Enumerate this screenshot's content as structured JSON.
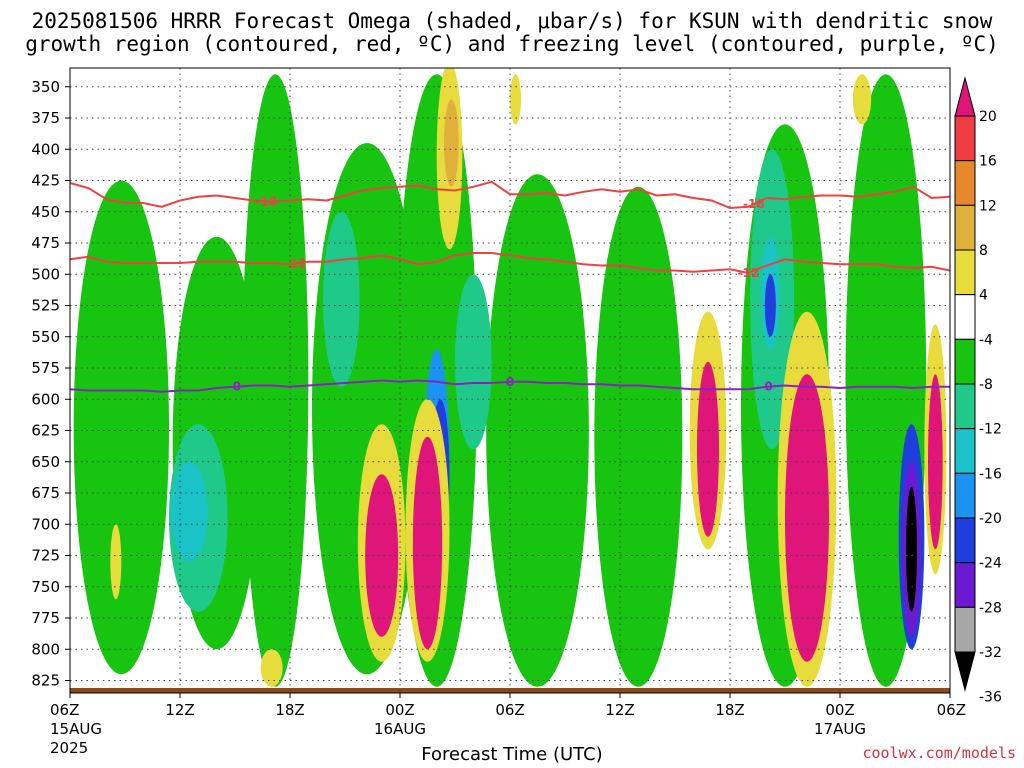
{
  "chart_data": {
    "type": "heatmap",
    "title_line1": "2025081506 HRRR Forecast Omega (shaded, μbar/s) for KSUN with dendritic snow",
    "title_line2": "growth region (contoured, red, ºC) and freezing level (contoured, purple, ºC)",
    "xlabel": "Forecast Time (UTC)",
    "credit": "coolwx.com/models",
    "y_axis": {
      "ticks": [
        350,
        375,
        400,
        425,
        450,
        475,
        500,
        525,
        550,
        575,
        600,
        625,
        650,
        675,
        700,
        725,
        750,
        775,
        800,
        825
      ],
      "range": [
        835,
        335
      ],
      "grid": true
    },
    "x_axis": {
      "ticks": [
        {
          "hour": 0,
          "label": "06Z",
          "sub": "15AUG",
          "sub2": "2025"
        },
        {
          "hour": 6,
          "label": "12Z",
          "sub": "",
          "sub2": ""
        },
        {
          "hour": 12,
          "label": "18Z",
          "sub": "",
          "sub2": ""
        },
        {
          "hour": 18,
          "label": "00Z",
          "sub": "16AUG",
          "sub2": ""
        },
        {
          "hour": 24,
          "label": "06Z",
          "sub": "",
          "sub2": ""
        },
        {
          "hour": 30,
          "label": "12Z",
          "sub": "",
          "sub2": ""
        },
        {
          "hour": 36,
          "label": "18Z",
          "sub": "",
          "sub2": ""
        },
        {
          "hour": 42,
          "label": "00Z",
          "sub": "17AUG",
          "sub2": ""
        },
        {
          "hour": 48,
          "label": "06Z",
          "sub": "",
          "sub2": ""
        }
      ],
      "range": [
        0,
        48
      ],
      "grid": true
    },
    "colorbar": {
      "labels": [
        20,
        16,
        12,
        8,
        4,
        -4,
        -8,
        -12,
        -16,
        -20,
        -24,
        -28,
        -32,
        -36
      ],
      "colors": [
        "#e0157a",
        "#ef3b43",
        "#e6892a",
        "#dfb03c",
        "#e8dc3c",
        "#ffffff",
        "#17c40f",
        "#1fc98a",
        "#19c3c7",
        "#1a94f0",
        "#1e3fdd",
        "#6a1ad1",
        "#a7a7a7",
        "#000000"
      ]
    },
    "contours": [
      {
        "name": "-18",
        "color": "#ef4141",
        "label_hours": [
          10.7,
          37.3
        ],
        "points": [
          [
            0,
            427
          ],
          [
            1,
            431
          ],
          [
            2,
            440
          ],
          [
            3,
            443
          ],
          [
            4,
            443
          ],
          [
            5,
            446
          ],
          [
            6,
            441
          ],
          [
            7,
            438
          ],
          [
            8,
            437
          ],
          [
            9,
            439
          ],
          [
            10,
            441
          ],
          [
            11,
            442
          ],
          [
            12,
            441
          ],
          [
            13,
            440
          ],
          [
            14,
            441
          ],
          [
            15,
            437
          ],
          [
            16,
            433
          ],
          [
            17,
            431
          ],
          [
            18,
            430
          ],
          [
            19,
            429
          ],
          [
            20,
            432
          ],
          [
            21,
            433
          ],
          [
            22,
            430
          ],
          [
            23,
            426
          ],
          [
            24,
            436
          ],
          [
            25,
            436
          ],
          [
            26,
            435
          ],
          [
            27,
            437
          ],
          [
            28,
            434
          ],
          [
            29,
            432
          ],
          [
            30,
            434
          ],
          [
            31,
            432
          ],
          [
            32,
            437
          ],
          [
            33,
            436
          ],
          [
            34,
            439
          ],
          [
            35,
            441
          ],
          [
            36,
            447
          ],
          [
            37,
            446
          ],
          [
            38,
            439
          ],
          [
            39,
            440
          ],
          [
            40,
            438
          ],
          [
            41,
            437
          ],
          [
            42,
            437
          ],
          [
            43,
            438
          ],
          [
            44,
            436
          ],
          [
            45,
            434
          ],
          [
            46,
            430
          ],
          [
            47,
            439
          ],
          [
            48,
            438
          ]
        ]
      },
      {
        "name": "-12",
        "color": "#ef4141",
        "label_hours": [
          12.3,
          37.0
        ],
        "points": [
          [
            0,
            488
          ],
          [
            1,
            486
          ],
          [
            2,
            490
          ],
          [
            3,
            491
          ],
          [
            4,
            491
          ],
          [
            5,
            491
          ],
          [
            6,
            491
          ],
          [
            7,
            490
          ],
          [
            8,
            490
          ],
          [
            9,
            490
          ],
          [
            10,
            491
          ],
          [
            11,
            491
          ],
          [
            12,
            492
          ],
          [
            13,
            490
          ],
          [
            14,
            490
          ],
          [
            15,
            488
          ],
          [
            16,
            487
          ],
          [
            17,
            485
          ],
          [
            18,
            488
          ],
          [
            19,
            492
          ],
          [
            20,
            490
          ],
          [
            21,
            485
          ],
          [
            22,
            483
          ],
          [
            23,
            483
          ],
          [
            24,
            485
          ],
          [
            25,
            487
          ],
          [
            26,
            488
          ],
          [
            27,
            490
          ],
          [
            28,
            492
          ],
          [
            29,
            493
          ],
          [
            30,
            493
          ],
          [
            31,
            495
          ],
          [
            32,
            497
          ],
          [
            33,
            497
          ],
          [
            34,
            498
          ],
          [
            35,
            497
          ],
          [
            36,
            496
          ],
          [
            37,
            499
          ],
          [
            38,
            493
          ],
          [
            39,
            488
          ],
          [
            40,
            490
          ],
          [
            41,
            491
          ],
          [
            42,
            492
          ],
          [
            43,
            492
          ],
          [
            44,
            492
          ],
          [
            45,
            494
          ],
          [
            46,
            495
          ],
          [
            47,
            494
          ],
          [
            48,
            497
          ]
        ]
      },
      {
        "name": "0",
        "color": "#8a22c0",
        "label_hours": [
          9.1,
          24.0,
          38.1
        ],
        "points": [
          [
            0,
            592
          ],
          [
            1,
            593
          ],
          [
            2,
            593
          ],
          [
            3,
            593
          ],
          [
            4,
            593
          ],
          [
            5,
            594
          ],
          [
            6,
            593
          ],
          [
            7,
            593
          ],
          [
            8,
            591
          ],
          [
            9,
            590
          ],
          [
            10,
            589
          ],
          [
            11,
            589
          ],
          [
            12,
            590
          ],
          [
            13,
            589
          ],
          [
            14,
            588
          ],
          [
            15,
            587
          ],
          [
            16,
            586
          ],
          [
            17,
            585
          ],
          [
            18,
            586
          ],
          [
            19,
            585
          ],
          [
            20,
            586
          ],
          [
            21,
            588
          ],
          [
            22,
            587
          ],
          [
            23,
            587
          ],
          [
            24,
            586
          ],
          [
            25,
            586
          ],
          [
            26,
            587
          ],
          [
            27,
            587
          ],
          [
            28,
            588
          ],
          [
            29,
            588
          ],
          [
            30,
            589
          ],
          [
            31,
            589
          ],
          [
            32,
            590
          ],
          [
            33,
            591
          ],
          [
            34,
            592
          ],
          [
            35,
            592
          ],
          [
            36,
            592
          ],
          [
            37,
            592
          ],
          [
            38,
            590
          ],
          [
            39,
            589
          ],
          [
            40,
            590
          ],
          [
            41,
            590
          ],
          [
            42,
            591
          ],
          [
            43,
            590
          ],
          [
            44,
            590
          ],
          [
            45,
            590
          ],
          [
            46,
            591
          ],
          [
            47,
            590
          ],
          [
            48,
            590
          ]
        ]
      }
    ],
    "omega_features": [
      {
        "value": -6,
        "hour": 2.8,
        "p_top": 425,
        "p_bot": 820,
        "hw": 2.6
      },
      {
        "value": -6,
        "hour": 8.0,
        "p_top": 470,
        "p_bot": 800,
        "hw": 2.4
      },
      {
        "value": -6,
        "hour": 11.2,
        "p_top": 340,
        "p_bot": 830,
        "hw": 1.8
      },
      {
        "value": -6,
        "hour": 16.2,
        "p_top": 395,
        "p_bot": 820,
        "hw": 3.0
      },
      {
        "value": -6,
        "hour": 20.0,
        "p_top": 340,
        "p_bot": 830,
        "hw": 2.2
      },
      {
        "value": -6,
        "hour": 25.5,
        "p_top": 420,
        "p_bot": 830,
        "hw": 2.8
      },
      {
        "value": -6,
        "hour": 31.0,
        "p_top": 430,
        "p_bot": 830,
        "hw": 2.4
      },
      {
        "value": -6,
        "hour": 39.0,
        "p_top": 380,
        "p_bot": 830,
        "hw": 2.4
      },
      {
        "value": -6,
        "hour": 44.5,
        "p_top": 340,
        "p_bot": 830,
        "hw": 2.2
      },
      {
        "value": -10,
        "hour": 7.0,
        "p_top": 620,
        "p_bot": 770,
        "hw": 1.6
      },
      {
        "value": -10,
        "hour": 14.8,
        "p_top": 450,
        "p_bot": 590,
        "hw": 1.0
      },
      {
        "value": -10,
        "hour": 22.0,
        "p_top": 500,
        "p_bot": 640,
        "hw": 1.0
      },
      {
        "value": -10,
        "hour": 38.3,
        "p_top": 400,
        "p_bot": 640,
        "hw": 1.2
      },
      {
        "value": -14,
        "hour": 6.5,
        "p_top": 650,
        "p_bot": 730,
        "hw": 1.0
      },
      {
        "value": -14,
        "hour": 38.2,
        "p_top": 470,
        "p_bot": 560,
        "hw": 0.5
      },
      {
        "value": -18,
        "hour": 20.0,
        "p_top": 560,
        "p_bot": 740,
        "hw": 0.7
      },
      {
        "value": -22,
        "hour": 20.2,
        "p_top": 600,
        "p_bot": 720,
        "hw": 0.5
      },
      {
        "value": -22,
        "hour": 38.2,
        "p_top": 500,
        "p_bot": 550,
        "hw": 0.3
      },
      {
        "value": -22,
        "hour": 45.9,
        "p_top": 620,
        "p_bot": 800,
        "hw": 0.7
      },
      {
        "value": -30,
        "hour": 20.3,
        "p_top": 640,
        "p_bot": 700,
        "hw": 0.3
      },
      {
        "value": -30,
        "hour": 45.9,
        "p_top": 650,
        "p_bot": 790,
        "hw": 0.5
      },
      {
        "value": -34,
        "hour": 20.3,
        "p_top": 665,
        "p_bot": 690,
        "hw": 0.2
      },
      {
        "value": -38,
        "hour": 45.9,
        "p_top": 670,
        "p_bot": 770,
        "hw": 0.3
      },
      {
        "value": 6,
        "hour": 17.0,
        "p_top": 620,
        "p_bot": 810,
        "hw": 1.3
      },
      {
        "value": 22,
        "hour": 17.0,
        "p_top": 660,
        "p_bot": 790,
        "hw": 0.9
      },
      {
        "value": 6,
        "hour": 19.5,
        "p_top": 600,
        "p_bot": 810,
        "hw": 1.2
      },
      {
        "value": 22,
        "hour": 19.5,
        "p_top": 630,
        "p_bot": 800,
        "hw": 0.8
      },
      {
        "value": 6,
        "hour": 34.8,
        "p_top": 530,
        "p_bot": 720,
        "hw": 1.0
      },
      {
        "value": 22,
        "hour": 34.8,
        "p_top": 570,
        "p_bot": 710,
        "hw": 0.6
      },
      {
        "value": 6,
        "hour": 40.2,
        "p_top": 530,
        "p_bot": 830,
        "hw": 1.6
      },
      {
        "value": 22,
        "hour": 40.2,
        "p_top": 580,
        "p_bot": 810,
        "hw": 1.2
      },
      {
        "value": 6,
        "hour": 47.2,
        "p_top": 540,
        "p_bot": 740,
        "hw": 0.6
      },
      {
        "value": 22,
        "hour": 47.2,
        "p_top": 580,
        "p_bot": 720,
        "hw": 0.4
      },
      {
        "value": 6,
        "hour": 20.7,
        "p_top": 330,
        "p_bot": 480,
        "hw": 0.7
      },
      {
        "value": 10,
        "hour": 20.8,
        "p_top": 360,
        "p_bot": 430,
        "hw": 0.4
      },
      {
        "value": 6,
        "hour": 43.2,
        "p_top": 340,
        "p_bot": 380,
        "hw": 0.5
      },
      {
        "value": 6,
        "hour": 24.3,
        "p_top": 340,
        "p_bot": 380,
        "hw": 0.3
      },
      {
        "value": 6,
        "hour": 2.5,
        "p_top": 700,
        "p_bot": 760,
        "hw": 0.3
      },
      {
        "value": 6,
        "hour": 11.0,
        "p_top": 800,
        "p_bot": 830,
        "hw": 0.6
      }
    ]
  }
}
